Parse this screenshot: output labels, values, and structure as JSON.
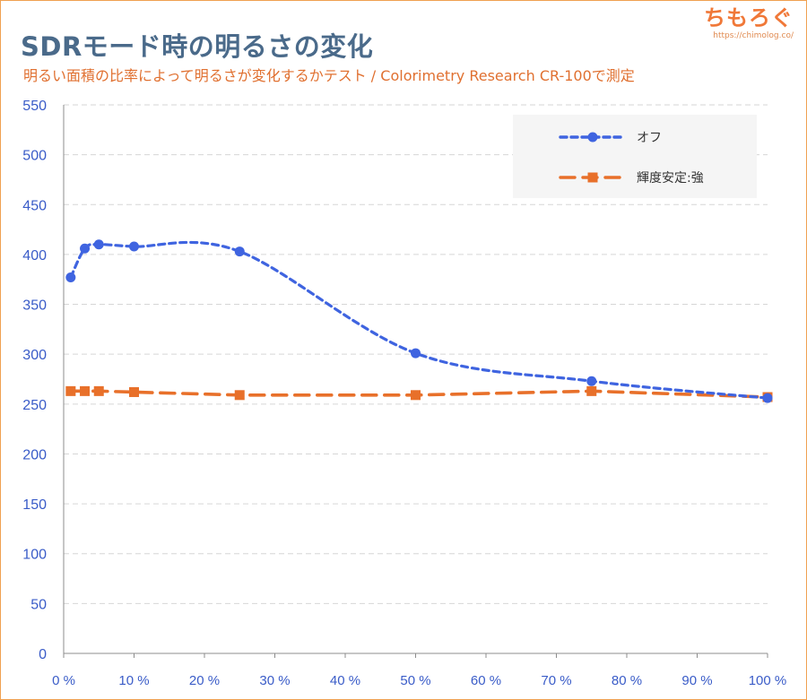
{
  "header": {
    "title": "SDRモード時の明るさの変化",
    "subtitle": "明るい面積の比率によって明るさが変化するかテスト  / Colorimetry Research CR-100で測定"
  },
  "brand": {
    "name": "ちもろぐ",
    "url": "https://chimolog.co/"
  },
  "chart_data": {
    "type": "line",
    "title": "SDRモード時の明るさの変化",
    "xlabel": "",
    "ylabel": "",
    "xlim": [
      0,
      100
    ],
    "ylim": [
      0,
      550
    ],
    "x_ticks": [
      "0 %",
      "10 %",
      "20 %",
      "30 %",
      "40 %",
      "50 %",
      "60 %",
      "70 %",
      "80 %",
      "90 %",
      "100 %"
    ],
    "y_ticks": [
      "0",
      "50",
      "100",
      "150",
      "200",
      "250",
      "300",
      "350",
      "400",
      "450",
      "500",
      "550"
    ],
    "grid": "horizontal dashed",
    "legend_position": "top-right",
    "series": [
      {
        "name": "オフ",
        "color": "#3f64e0",
        "marker": "circle",
        "line_style": "dotted",
        "smooth": true,
        "x": [
          1,
          3,
          5,
          10,
          25,
          50,
          75,
          100
        ],
        "y": [
          377,
          406,
          410,
          408,
          403,
          301,
          273,
          256
        ]
      },
      {
        "name": "輝度安定:強",
        "color": "#e8702a",
        "marker": "square",
        "line_style": "dashed",
        "smooth": false,
        "x": [
          1,
          3,
          5,
          10,
          25,
          50,
          75,
          100
        ],
        "y": [
          263,
          263,
          263,
          262,
          259,
          259,
          263,
          257
        ]
      }
    ]
  }
}
